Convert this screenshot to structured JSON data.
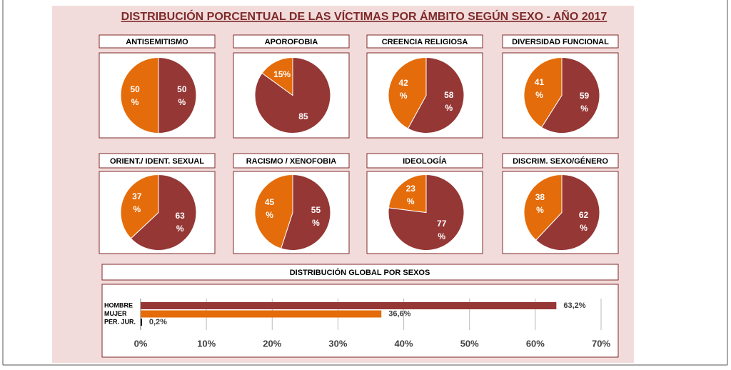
{
  "title": "DISTRIBUCIÓN PORCENTUAL DE LAS VÍCTIMAS POR ÁMBITO SEGÚN SEXO - AÑO 2017",
  "chart_data": [
    {
      "type": "pie",
      "title": "ANTISEMITISMO",
      "values": [
        50,
        50
      ],
      "value_labels": [
        "50\n%",
        "50\n%"
      ],
      "colors": [
        "#953735",
        "#e46c0a"
      ]
    },
    {
      "type": "pie",
      "title": "APOROFOBIA",
      "values": [
        85,
        15
      ],
      "value_labels": [
        "85",
        "15%"
      ],
      "colors": [
        "#953735",
        "#e46c0a"
      ]
    },
    {
      "type": "pie",
      "title": "CREENCIA RELIGIOSA",
      "values": [
        58,
        42
      ],
      "value_labels": [
        "58\n%",
        "42\n%"
      ],
      "colors": [
        "#953735",
        "#e46c0a"
      ]
    },
    {
      "type": "pie",
      "title": "DIVERSIDAD FUNCIONAL",
      "values": [
        59,
        41
      ],
      "value_labels": [
        "59\n%",
        "41\n%"
      ],
      "colors": [
        "#953735",
        "#e46c0a"
      ]
    },
    {
      "type": "pie",
      "title": "ORIENT./ IDENT. SEXUAL",
      "values": [
        63,
        37
      ],
      "value_labels": [
        "63\n%",
        "37\n%"
      ],
      "colors": [
        "#953735",
        "#e46c0a"
      ]
    },
    {
      "type": "pie",
      "title": "RACISMO / XENOFOBIA",
      "values": [
        55,
        45
      ],
      "value_labels": [
        "55\n%",
        "45\n%"
      ],
      "colors": [
        "#953735",
        "#e46c0a"
      ]
    },
    {
      "type": "pie",
      "title": "IDEOLOGÍA",
      "values": [
        77,
        23
      ],
      "value_labels": [
        "77\n%",
        "23\n%"
      ],
      "colors": [
        "#953735",
        "#e46c0a"
      ]
    },
    {
      "type": "pie",
      "title": "DISCRIM. SEXO/GÉNERO",
      "values": [
        62,
        38
      ],
      "value_labels": [
        "62\n%",
        "38\n%"
      ],
      "colors": [
        "#953735",
        "#e46c0a"
      ]
    },
    {
      "type": "hbar",
      "title": "DISTRIBUCIÓN GLOBAL POR SEXOS",
      "categories": [
        "HOMBRE",
        "MUJER",
        "PER. JUR."
      ],
      "values": [
        63.2,
        36.6,
        0.2
      ],
      "value_labels": [
        "63,2%",
        "36,6%",
        "0,2%"
      ],
      "colors": [
        "#953735",
        "#e46c0a",
        "#000000"
      ],
      "xlim": [
        0,
        70
      ],
      "xticks": [
        {
          "value": 0,
          "label": "0%"
        },
        {
          "value": 10,
          "label": "10%"
        },
        {
          "value": 20,
          "label": "20%"
        },
        {
          "value": 30,
          "label": "30%"
        },
        {
          "value": 40,
          "label": "40%"
        },
        {
          "value": 50,
          "label": "50%"
        },
        {
          "value": 60,
          "label": "60%"
        },
        {
          "value": 70,
          "label": "70%"
        }
      ],
      "grid": true
    }
  ]
}
